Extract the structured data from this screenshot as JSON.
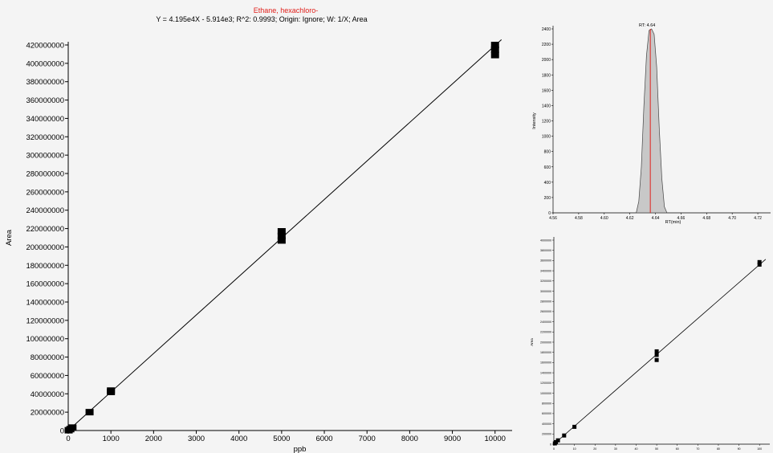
{
  "calibration_chart": {
    "title": "Ethane, hexachloro-",
    "equation": "Y = 4.195e4X - 5.914e3; R^2: 0.9993; Origin: Ignore; W: 1/X; Area",
    "title_color": "#e0201b"
  },
  "chart_data": [
    {
      "type": "scatter",
      "title": "Ethane, hexachloro-",
      "subtitle": "Y = 4.195e4X - 5.914e3; R^2: 0.9993; Origin: Ignore; W: 1/X; Area",
      "xlabel": "ppb",
      "ylabel": "Area",
      "xlim": [
        0,
        10400
      ],
      "ylim": [
        0,
        420000000
      ],
      "x_ticks": [
        0,
        1000,
        2000,
        3000,
        4000,
        5000,
        6000,
        7000,
        8000,
        9000,
        10000
      ],
      "y_ticks": [
        0,
        20000000,
        40000000,
        60000000,
        80000000,
        100000000,
        120000000,
        140000000,
        160000000,
        180000000,
        200000000,
        220000000,
        240000000,
        260000000,
        280000000,
        300000000,
        320000000,
        340000000,
        360000000,
        380000000,
        400000000,
        420000000
      ],
      "x_tick_labels": [
        "0",
        "1000",
        "2000",
        "3000",
        "4000",
        "5000",
        "6000",
        "7000",
        "8000",
        "9000",
        "10000"
      ],
      "y_tick_labels": [
        "0",
        "20000000",
        "40000000",
        "60000000",
        "80000000",
        "100000000",
        "120000000",
        "140000000",
        "160000000",
        "180000000",
        "200000000",
        "220000000",
        "240000000",
        "260000000",
        "280000000",
        "300000000",
        "320000000",
        "340000000",
        "360000000",
        "380000000",
        "400000000",
        "420000000"
      ],
      "points": [
        {
          "x": 10,
          "y": 300000
        },
        {
          "x": 50,
          "y": 1500000
        },
        {
          "x": 100,
          "y": 3200000
        },
        {
          "x": 500,
          "y": 20000000
        },
        {
          "x": 1000,
          "y": 42000000
        },
        {
          "x": 1000,
          "y": 43500000
        },
        {
          "x": 5000,
          "y": 207000000
        },
        {
          "x": 5000,
          "y": 212000000
        },
        {
          "x": 5000,
          "y": 217000000
        },
        {
          "x": 10000,
          "y": 409000000
        },
        {
          "x": 10000,
          "y": 415000000
        },
        {
          "x": 10000,
          "y": 420000000
        }
      ],
      "fit_line": {
        "slope": 41950,
        "intercept": -5914
      },
      "grid": false,
      "legend": "none"
    },
    {
      "type": "area",
      "title": "RT: 4.64",
      "xlabel": "RT(min)",
      "ylabel": "Intensity",
      "xlim": [
        4.56,
        4.73
      ],
      "ylim": [
        0,
        2400
      ],
      "x_ticks": [
        4.56,
        4.58,
        4.6,
        4.62,
        4.64,
        4.66,
        4.68,
        4.7,
        4.72
      ],
      "y_ticks": [
        0,
        200,
        400,
        600,
        800,
        1000,
        1200,
        1400,
        1600,
        1800,
        2000,
        2200,
        2400
      ],
      "x_tick_labels": [
        "4.56",
        "4.58",
        "4.60",
        "4.62",
        "4.64",
        "4.66",
        "4.68",
        "4.70",
        "4.72"
      ],
      "y_tick_labels": [
        "0",
        "200",
        "400",
        "600",
        "800",
        "1000",
        "1200",
        "1400",
        "1600",
        "1800",
        "2000",
        "2200",
        "2400"
      ],
      "x": [
        4.625,
        4.627,
        4.629,
        4.631,
        4.633,
        4.635,
        4.637,
        4.639,
        4.641,
        4.643,
        4.645,
        4.647,
        4.649
      ],
      "y": [
        0,
        150,
        600,
        1400,
        2050,
        2380,
        2400,
        2330,
        1900,
        1100,
        450,
        80,
        0
      ],
      "rt_marker": 4.64,
      "fill_color": "#c8c8c8",
      "marker_color": "#e0201b"
    },
    {
      "type": "scatter",
      "ylabel": "Area",
      "xlim": [
        0,
        105
      ],
      "ylim": [
        0,
        4000000
      ],
      "x_ticks": [
        0,
        10,
        20,
        30,
        40,
        50,
        60,
        70,
        80,
        90,
        100
      ],
      "y_ticks": [
        0,
        200000,
        400000,
        600000,
        800000,
        1000000,
        1200000,
        1400000,
        1600000,
        1800000,
        2000000,
        2200000,
        2400000,
        2600000,
        2800000,
        3000000,
        3200000,
        3400000,
        3600000,
        3800000,
        4000000
      ],
      "x_tick_labels": [
        "0",
        "10",
        "20",
        "30",
        "40",
        "50",
        "60",
        "70",
        "80",
        "90",
        "100"
      ],
      "y_tick_labels": [
        "0",
        "200000",
        "400000",
        "600000",
        "800000",
        "1000000",
        "1200000",
        "1400000",
        "1600000",
        "1800000",
        "2000000",
        "2200000",
        "2400000",
        "2600000",
        "2800000",
        "3000000",
        "3200000",
        "3400000",
        "3600000",
        "3800000",
        "4000000"
      ],
      "points": [
        {
          "x": 0.5,
          "y": 15000
        },
        {
          "x": 1,
          "y": 40000
        },
        {
          "x": 2,
          "y": 75000
        },
        {
          "x": 5,
          "y": 170000
        },
        {
          "x": 10,
          "y": 340000
        },
        {
          "x": 50,
          "y": 1650000
        },
        {
          "x": 50,
          "y": 1750000
        },
        {
          "x": 50,
          "y": 1820000
        },
        {
          "x": 100,
          "y": 3520000
        },
        {
          "x": 100,
          "y": 3570000
        }
      ],
      "fit_line": {
        "slope": 35200,
        "intercept": 0
      },
      "grid": false,
      "legend": "none"
    }
  ]
}
